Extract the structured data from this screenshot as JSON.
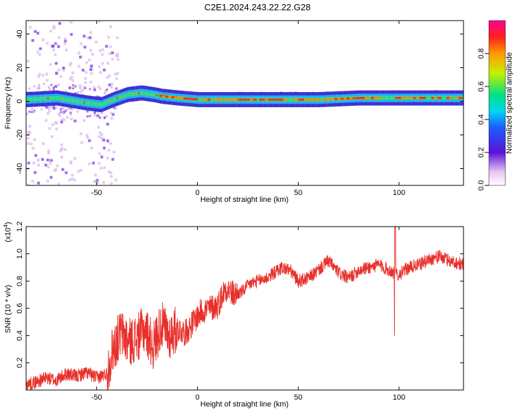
{
  "title": "C2E1.2024.243.22.22.G28",
  "colors": {
    "snr_line": "#e8302b",
    "spectrum_band": "#2fd27a",
    "axis": "#000000"
  },
  "chart_data": [
    {
      "type": "heatmap",
      "xlabel": "Height of straight line (km)",
      "ylabel": "Frequency (Hz)",
      "xlim": [
        -85,
        132
      ],
      "ylim": [
        -50,
        48
      ],
      "xticks": [
        -50,
        0,
        50,
        100
      ],
      "yticks": [
        -40,
        -20,
        0,
        20,
        40
      ],
      "colorbar": {
        "label": "Normalized spectral amplitude",
        "range": [
          0,
          1
        ],
        "ticks": [
          "0.0",
          "0.2",
          "0.4",
          "0.6",
          "0.8"
        ]
      },
      "ridge": {
        "x": [
          -85,
          -70,
          -55,
          -48,
          -42,
          -35,
          -28,
          -22,
          -18,
          -10,
          0,
          20,
          40,
          60,
          80,
          100,
          120,
          132
        ],
        "y": [
          1,
          2,
          -1,
          -2,
          1,
          4,
          5,
          4,
          3,
          2,
          1,
          1,
          1,
          1,
          2,
          2,
          2,
          2
        ]
      }
    },
    {
      "type": "line",
      "xlabel": "Height of straight line (km)",
      "ylabel": "SNR (10 * v/v)",
      "y_multiplier": "(x10",
      "y_multiplier_exp": "4",
      "y_multiplier_close": ")",
      "xlim": [
        -85,
        132
      ],
      "ylim": [
        0,
        1.2
      ],
      "xticks": [
        -50,
        0,
        50,
        100
      ],
      "yticks": [
        "0.2",
        "0.4",
        "0.6",
        "0.8",
        "1.0",
        "1.2"
      ],
      "series": [
        {
          "x": [
            -85,
            -80,
            -75,
            -70,
            -65,
            -60,
            -55,
            -50,
            -45,
            -42,
            -38,
            -34,
            -30,
            -26,
            -22,
            -18,
            -14,
            -10,
            -6,
            -2,
            2,
            6,
            10,
            14,
            18,
            22,
            26,
            30,
            34,
            38,
            42,
            46,
            50,
            55,
            60,
            65,
            70,
            75,
            80,
            85,
            90,
            95,
            100,
            105,
            110,
            115,
            120,
            125,
            132
          ],
          "y": [
            0.04,
            0.06,
            0.09,
            0.07,
            0.12,
            0.1,
            0.13,
            0.09,
            0.12,
            0.3,
            0.42,
            0.35,
            0.38,
            0.45,
            0.32,
            0.48,
            0.4,
            0.45,
            0.42,
            0.5,
            0.58,
            0.6,
            0.62,
            0.75,
            0.7,
            0.72,
            0.78,
            0.8,
            0.82,
            0.86,
            0.9,
            0.88,
            0.8,
            0.82,
            0.88,
            0.95,
            0.86,
            0.82,
            0.88,
            0.9,
            0.92,
            0.88,
            0.85,
            0.9,
            0.92,
            0.96,
            0.98,
            0.95,
            0.92
          ]
        }
      ]
    }
  ]
}
